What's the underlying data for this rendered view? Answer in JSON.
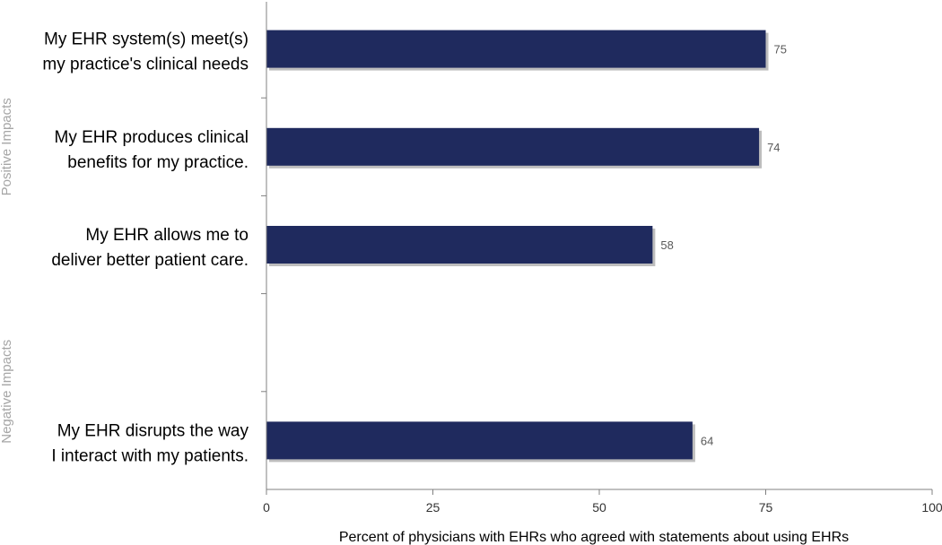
{
  "chart_data": {
    "type": "bar",
    "orientation": "horizontal",
    "xlabel": "Percent of physicians with EHRs who agreed with statements about using EHRs",
    "xlim": [
      0,
      100
    ],
    "xticks": [
      0,
      25,
      50,
      75,
      100
    ],
    "groups": [
      {
        "name": "Positive Impacts",
        "slots": [
          0,
          1,
          2
        ]
      },
      {
        "name": "Negative Impacts",
        "slots": [
          3,
          4
        ]
      }
    ],
    "categories": [
      {
        "lines": [
          "My EHR system(s) meet(s)",
          "my practice's clinical needs"
        ],
        "value": 75,
        "slot": 0
      },
      {
        "lines": [
          "My EHR produces clinical",
          "benefits for my practice."
        ],
        "value": 74,
        "slot": 1
      },
      {
        "lines": [
          "My EHR allows me to",
          "deliver better patient care."
        ],
        "value": 58,
        "slot": 2
      },
      {
        "lines": [
          "My EHR disrupts the way",
          "I interact with my patients."
        ],
        "value": 64,
        "slot": 4
      }
    ],
    "colors": {
      "bar": "#1f2a5e",
      "bar_shadow": "#bdbdbd"
    }
  }
}
